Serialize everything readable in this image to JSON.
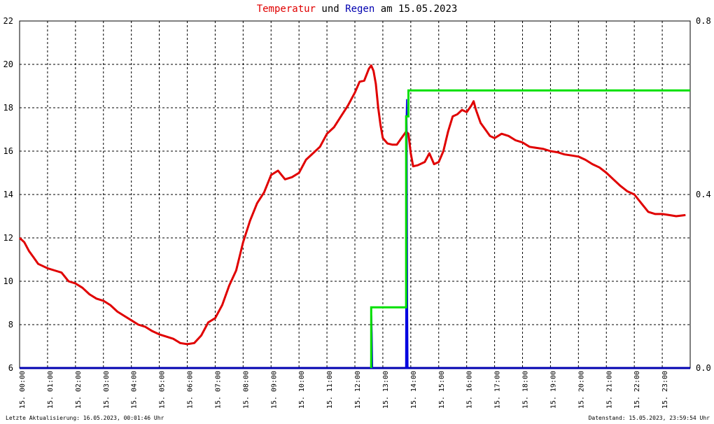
{
  "title": {
    "part1": "Temperatur",
    "part2": " und ",
    "part3": "Regen",
    "part4": " am 15.05.2023"
  },
  "footer": {
    "left": "Letzte Aktualisierung: 16.05.2023, 00:01:46 Uhr",
    "right": "Datenstand: 15.05.2023, 23:59:54 Uhr"
  },
  "colors": {
    "temperature": "#e00000",
    "rain_amount": "#0000e0",
    "rain_cumulative": "#00e000",
    "grid": "#000000",
    "axis_baseline": "#0000b0"
  },
  "chart_data": {
    "type": "line",
    "title": "Temperatur und Regen am 15.05.2023",
    "x_ticks": [
      "15. 00:00",
      "15. 01:00",
      "15. 02:00",
      "15. 03:00",
      "15. 04:00",
      "15. 05:00",
      "15. 06:00",
      "15. 07:00",
      "15. 08:00",
      "15. 09:00",
      "15. 10:00",
      "15. 11:00",
      "15. 12:00",
      "15. 13:00",
      "15. 14:00",
      "15. 15:00",
      "15. 16:00",
      "15. 17:00",
      "15. 18:00",
      "15. 19:00",
      "15. 20:00",
      "15. 21:00",
      "15. 22:00",
      "15. 23:00"
    ],
    "xlim": [
      "15.05.2023 00:00",
      "15.05.2023 24:00"
    ],
    "y_left": {
      "ylim": [
        6,
        22
      ],
      "ticks": [
        "6",
        "8",
        "10",
        "12",
        "14",
        "16",
        "18",
        "20",
        "22"
      ]
    },
    "y_right": {
      "ylim": [
        0.0,
        0.8
      ],
      "ticks": [
        "0.0",
        "0.4",
        "0.8"
      ]
    },
    "grid": true,
    "series": [
      {
        "name": "Temperatur",
        "axis": "left",
        "kind": "line",
        "points": [
          [
            "00:00",
            12.0
          ],
          [
            "00:10",
            11.8
          ],
          [
            "00:20",
            11.4
          ],
          [
            "00:30",
            11.1
          ],
          [
            "00:40",
            10.8
          ],
          [
            "00:50",
            10.7
          ],
          [
            "01:00",
            10.6
          ],
          [
            "01:15",
            10.5
          ],
          [
            "01:30",
            10.4
          ],
          [
            "01:45",
            10.0
          ],
          [
            "02:00",
            9.9
          ],
          [
            "02:15",
            9.7
          ],
          [
            "02:30",
            9.4
          ],
          [
            "02:45",
            9.2
          ],
          [
            "03:00",
            9.1
          ],
          [
            "03:15",
            8.9
          ],
          [
            "03:30",
            8.6
          ],
          [
            "03:45",
            8.4
          ],
          [
            "04:00",
            8.2
          ],
          [
            "04:15",
            8.0
          ],
          [
            "04:30",
            7.9
          ],
          [
            "04:45",
            7.7
          ],
          [
            "05:00",
            7.55
          ],
          [
            "05:15",
            7.45
          ],
          [
            "05:30",
            7.35
          ],
          [
            "05:45",
            7.15
          ],
          [
            "06:00",
            7.1
          ],
          [
            "06:15",
            7.15
          ],
          [
            "06:30",
            7.5
          ],
          [
            "06:45",
            8.1
          ],
          [
            "07:00",
            8.3
          ],
          [
            "07:15",
            8.9
          ],
          [
            "07:30",
            9.8
          ],
          [
            "07:45",
            10.5
          ],
          [
            "08:00",
            11.8
          ],
          [
            "08:15",
            12.8
          ],
          [
            "08:30",
            13.6
          ],
          [
            "08:45",
            14.1
          ],
          [
            "09:00",
            14.9
          ],
          [
            "09:15",
            15.1
          ],
          [
            "09:30",
            14.7
          ],
          [
            "09:45",
            14.8
          ],
          [
            "10:00",
            15.0
          ],
          [
            "10:15",
            15.6
          ],
          [
            "10:30",
            15.9
          ],
          [
            "10:45",
            16.2
          ],
          [
            "11:00",
            16.8
          ],
          [
            "11:15",
            17.1
          ],
          [
            "11:30",
            17.6
          ],
          [
            "11:45",
            18.1
          ],
          [
            "12:00",
            18.7
          ],
          [
            "12:10",
            19.2
          ],
          [
            "12:20",
            19.25
          ],
          [
            "12:30",
            19.8
          ],
          [
            "12:35",
            19.95
          ],
          [
            "12:40",
            19.7
          ],
          [
            "12:45",
            19.1
          ],
          [
            "12:50",
            18.0
          ],
          [
            "12:55",
            17.2
          ],
          [
            "13:00",
            16.6
          ],
          [
            "13:10",
            16.35
          ],
          [
            "13:20",
            16.3
          ],
          [
            "13:30",
            16.3
          ],
          [
            "13:40",
            16.6
          ],
          [
            "13:50",
            16.9
          ],
          [
            "13:55",
            16.8
          ],
          [
            "14:00",
            15.9
          ],
          [
            "14:05",
            15.3
          ],
          [
            "14:15",
            15.35
          ],
          [
            "14:30",
            15.5
          ],
          [
            "14:40",
            15.9
          ],
          [
            "14:50",
            15.4
          ],
          [
            "15:00",
            15.5
          ],
          [
            "15:10",
            16.0
          ],
          [
            "15:20",
            16.9
          ],
          [
            "15:30",
            17.6
          ],
          [
            "15:40",
            17.7
          ],
          [
            "15:50",
            17.9
          ],
          [
            "16:00",
            17.8
          ],
          [
            "16:10",
            18.1
          ],
          [
            "16:15",
            18.3
          ],
          [
            "16:20",
            17.9
          ],
          [
            "16:30",
            17.3
          ],
          [
            "16:40",
            17.0
          ],
          [
            "16:50",
            16.7
          ],
          [
            "17:00",
            16.6
          ],
          [
            "17:15",
            16.8
          ],
          [
            "17:30",
            16.7
          ],
          [
            "17:45",
            16.5
          ],
          [
            "18:00",
            16.4
          ],
          [
            "18:15",
            16.2
          ],
          [
            "18:30",
            16.15
          ],
          [
            "18:45",
            16.1
          ],
          [
            "19:00",
            16.0
          ],
          [
            "19:15",
            15.95
          ],
          [
            "19:30",
            15.85
          ],
          [
            "19:45",
            15.8
          ],
          [
            "20:00",
            15.75
          ],
          [
            "20:15",
            15.6
          ],
          [
            "20:30",
            15.4
          ],
          [
            "20:45",
            15.25
          ],
          [
            "21:00",
            15.0
          ],
          [
            "21:15",
            14.7
          ],
          [
            "21:30",
            14.4
          ],
          [
            "21:45",
            14.15
          ],
          [
            "22:00",
            14.0
          ],
          [
            "22:15",
            13.6
          ],
          [
            "22:30",
            13.2
          ],
          [
            "22:45",
            13.1
          ],
          [
            "23:00",
            13.1
          ],
          [
            "23:15",
            13.05
          ],
          [
            "23:30",
            13.0
          ],
          [
            "23:50",
            13.05
          ]
        ]
      },
      {
        "name": "Regen",
        "axis": "right",
        "kind": "bars",
        "points": [
          [
            "12:34",
            0.0
          ],
          [
            "12:35",
            0.13
          ],
          [
            "12:36",
            0.12
          ],
          [
            "12:37",
            0.08
          ],
          [
            "12:38",
            0.0
          ],
          [
            "13:49",
            0.0
          ],
          [
            "13:50",
            0.57
          ],
          [
            "13:51",
            0.62
          ],
          [
            "13:52",
            0.55
          ],
          [
            "13:53",
            0.17
          ],
          [
            "13:54",
            0.0
          ]
        ]
      },
      {
        "name": "Regen kumuliert",
        "axis": "right",
        "kind": "step",
        "points": [
          [
            "12:35",
            0.0
          ],
          [
            "12:35",
            0.14
          ],
          [
            "13:50",
            0.14
          ],
          [
            "13:50",
            0.58
          ],
          [
            "13:55",
            0.58
          ],
          [
            "13:55",
            0.64
          ],
          [
            "24:00",
            0.64
          ]
        ]
      }
    ]
  }
}
